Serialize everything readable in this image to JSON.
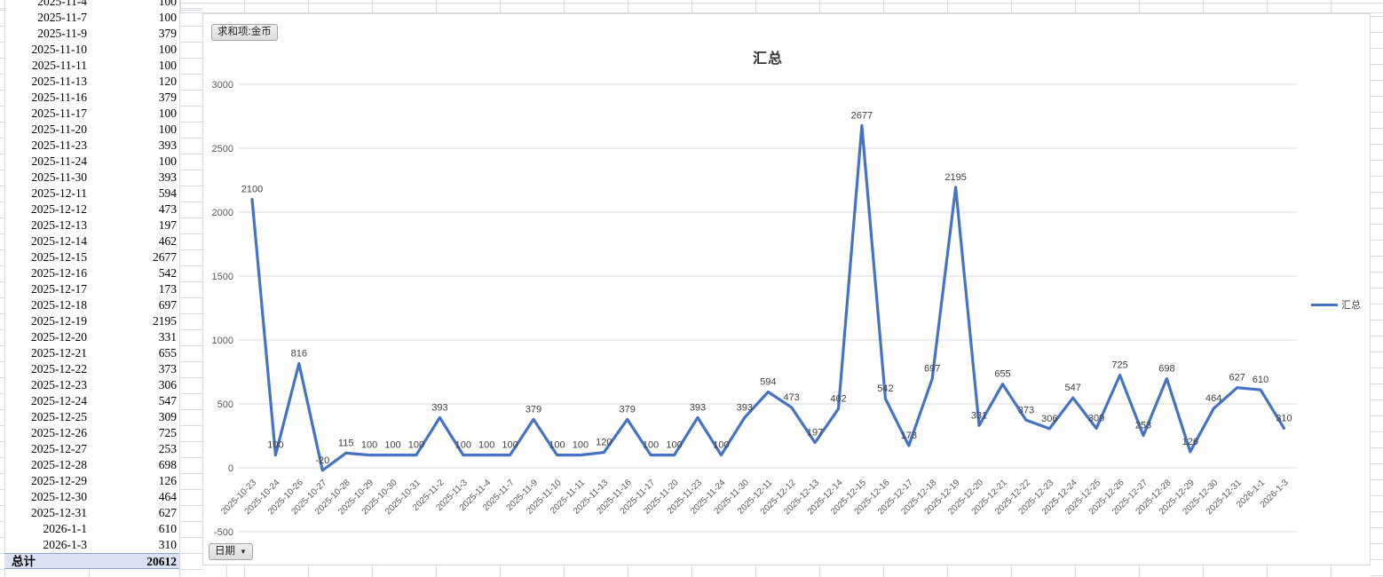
{
  "pivot_table": {
    "rows": [
      {
        "date": "2025-11-4",
        "value": 100
      },
      {
        "date": "2025-11-7",
        "value": 100
      },
      {
        "date": "2025-11-9",
        "value": 379
      },
      {
        "date": "2025-11-10",
        "value": 100
      },
      {
        "date": "2025-11-11",
        "value": 100
      },
      {
        "date": "2025-11-13",
        "value": 120
      },
      {
        "date": "2025-11-16",
        "value": 379
      },
      {
        "date": "2025-11-17",
        "value": 100
      },
      {
        "date": "2025-11-20",
        "value": 100
      },
      {
        "date": "2025-11-23",
        "value": 393
      },
      {
        "date": "2025-11-24",
        "value": 100
      },
      {
        "date": "2025-11-30",
        "value": 393
      },
      {
        "date": "2025-12-11",
        "value": 594
      },
      {
        "date": "2025-12-12",
        "value": 473
      },
      {
        "date": "2025-12-13",
        "value": 197
      },
      {
        "date": "2025-12-14",
        "value": 462
      },
      {
        "date": "2025-12-15",
        "value": 2677
      },
      {
        "date": "2025-12-16",
        "value": 542
      },
      {
        "date": "2025-12-17",
        "value": 173
      },
      {
        "date": "2025-12-18",
        "value": 697
      },
      {
        "date": "2025-12-19",
        "value": 2195
      },
      {
        "date": "2025-12-20",
        "value": 331
      },
      {
        "date": "2025-12-21",
        "value": 655
      },
      {
        "date": "2025-12-22",
        "value": 373
      },
      {
        "date": "2025-12-23",
        "value": 306
      },
      {
        "date": "2025-12-24",
        "value": 547
      },
      {
        "date": "2025-12-25",
        "value": 309
      },
      {
        "date": "2025-12-26",
        "value": 725
      },
      {
        "date": "2025-12-27",
        "value": 253
      },
      {
        "date": "2025-12-28",
        "value": 698
      },
      {
        "date": "2025-12-29",
        "value": 126
      },
      {
        "date": "2025-12-30",
        "value": 464
      },
      {
        "date": "2025-12-31",
        "value": 627
      },
      {
        "date": "2026-1-1",
        "value": 610
      },
      {
        "date": "2026-1-3",
        "value": 310
      }
    ],
    "total": {
      "label": "总计",
      "value": "20612"
    }
  },
  "chart": {
    "title": "汇总",
    "value_field_button": "求和项:金币",
    "axis_field_button": "日期",
    "dropdown_arrow": "▼",
    "legend_label": "汇总",
    "line_color": "#4472C4",
    "gridline_color": "#d9d9d9"
  },
  "chart_data": {
    "type": "line",
    "title": "汇总",
    "series_name": "汇总",
    "categories": [
      "2025-10-23",
      "2025-10-24",
      "2025-10-26",
      "2025-10-27",
      "2025-10-28",
      "2025-10-29",
      "2025-10-30",
      "2025-10-31",
      "2025-11-2",
      "2025-11-3",
      "2025-11-4",
      "2025-11-7",
      "2025-11-9",
      "2025-11-10",
      "2025-11-11",
      "2025-11-13",
      "2025-11-16",
      "2025-11-17",
      "2025-11-20",
      "2025-11-23",
      "2025-11-24",
      "2025-11-30",
      "2025-12-11",
      "2025-12-12",
      "2025-12-13",
      "2025-12-14",
      "2025-12-15",
      "2025-12-16",
      "2025-12-17",
      "2025-12-18",
      "2025-12-19",
      "2025-12-20",
      "2025-12-21",
      "2025-12-22",
      "2025-12-23",
      "2025-12-24",
      "2025-12-25",
      "2025-12-26",
      "2025-12-27",
      "2025-12-28",
      "2025-12-29",
      "2025-12-30",
      "2025-12-31",
      "2026-1-1",
      "2026-1-3"
    ],
    "values": [
      2100,
      100,
      816,
      -20,
      115,
      100,
      100,
      100,
      393,
      100,
      100,
      100,
      379,
      100,
      100,
      120,
      379,
      100,
      100,
      393,
      100,
      393,
      594,
      473,
      197,
      462,
      2677,
      542,
      173,
      697,
      2195,
      331,
      655,
      373,
      306,
      547,
      309,
      725,
      253,
      698,
      126,
      464,
      627,
      610,
      310
    ],
    "data_labels": true,
    "ylim": [
      -500,
      3000
    ],
    "yticks": [
      3000,
      2500,
      2000,
      1500,
      1000,
      500,
      0,
      -500
    ],
    "grid": true,
    "legend_position": "right"
  }
}
